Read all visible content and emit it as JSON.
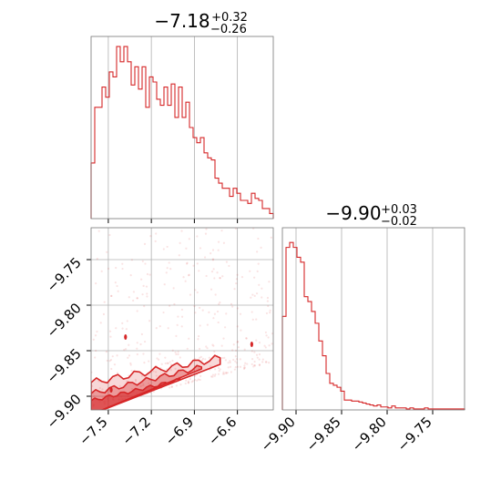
{
  "chart_data": {
    "type": "corner",
    "color": "#d62728",
    "grid": true,
    "parameters": [
      {
        "title_main": "−7.18",
        "title_sup": "+0.32",
        "title_sub": "−0.26",
        "range": [
          -7.62,
          -6.35
        ],
        "ticks": [
          -7.5,
          -7.2,
          -6.9,
          -6.6
        ],
        "tick_labels": [
          "−7.5",
          "−7.2",
          "−6.9",
          "−6.6"
        ]
      },
      {
        "title_main": "−9.90",
        "title_sup": "+0.03",
        "title_sub": "−0.02",
        "range": [
          -9.915,
          -9.715
        ],
        "ticks": [
          -9.9,
          -9.85,
          -9.8,
          -9.75
        ],
        "tick_labels": [
          "−9.90",
          "−9.85",
          "−9.80",
          "−9.75"
        ]
      }
    ],
    "hist_param0": {
      "values": [
        55,
        110,
        110,
        130,
        120,
        145,
        140,
        170,
        155,
        170,
        155,
        132,
        150,
        128,
        150,
        110,
        140,
        135,
        118,
        112,
        130,
        112,
        133,
        100,
        130,
        100,
        115,
        90,
        80,
        75,
        80,
        65,
        60,
        58,
        40,
        35,
        30,
        30,
        22,
        30,
        25,
        18,
        18,
        15,
        25,
        20,
        18,
        10,
        10,
        5
      ],
      "max": 180
    },
    "hist_param1": {
      "values": [
        95,
        165,
        170,
        165,
        155,
        150,
        115,
        110,
        100,
        88,
        70,
        55,
        37,
        27,
        25,
        23,
        19,
        10,
        10,
        9,
        9,
        8,
        7,
        6,
        5,
        4,
        5,
        3,
        3,
        2,
        4,
        2,
        2,
        2,
        1,
        2,
        1,
        1,
        1,
        2,
        1,
        1,
        1,
        1,
        1,
        1,
        1,
        1,
        1,
        1
      ],
      "max": 185
    }
  }
}
